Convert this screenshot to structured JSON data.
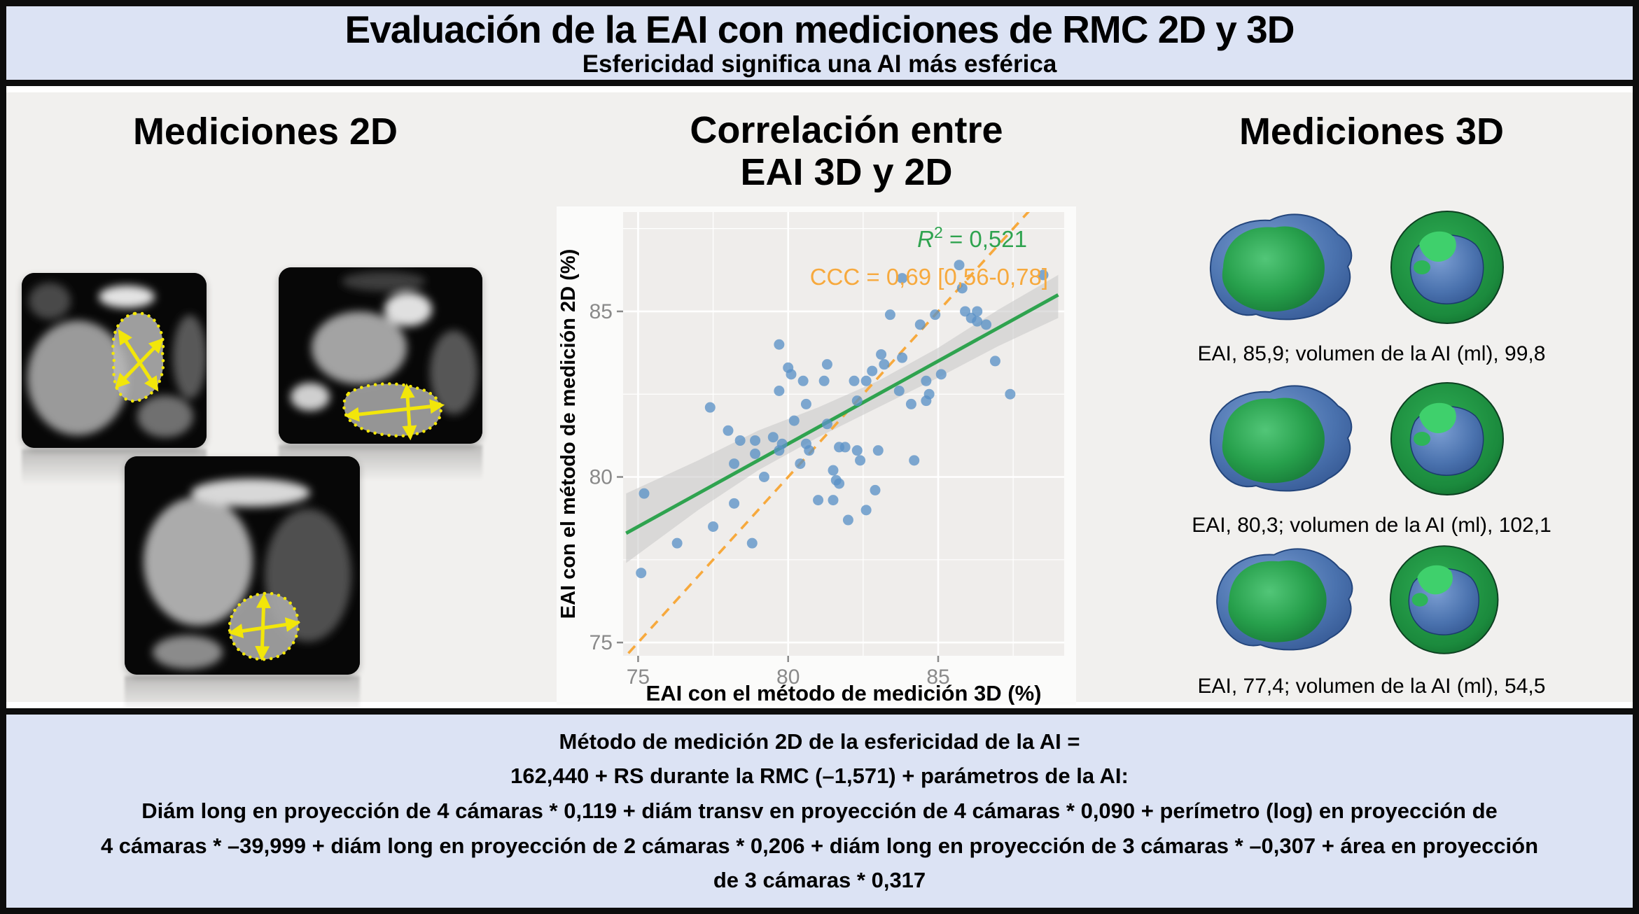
{
  "header": {
    "title": "Evaluación de la EAI con mediciones de RMC 2D y 3D",
    "subtitle": "Esfericidad significa una AI más esférica"
  },
  "panels": {
    "left": {
      "title": "Mediciones 2D"
    },
    "center": {
      "title_line1": "Correlación entre",
      "title_line2": "EAI 3D y 2D"
    },
    "right": {
      "title": "Mediciones 3D",
      "models": [
        {
          "caption": "EAI, 85,9; volumen de la AI (ml), 99,8"
        },
        {
          "caption": "EAI, 80,3; volumen de la AI (ml), 102,1"
        },
        {
          "caption": "EAI, 77,4; volumen de la AI (ml), 54,5"
        }
      ]
    }
  },
  "chart_data": {
    "type": "scatter",
    "title": "",
    "xlabel": "EAI con el método de medición 3D (%)",
    "ylabel": "EAI con el método de medición 2D (%)",
    "xlim": [
      74.5,
      89.2
    ],
    "ylim": [
      74.6,
      88.0
    ],
    "xticks": [
      75,
      80,
      85
    ],
    "yticks": [
      75,
      80,
      85
    ],
    "grid": true,
    "annotations": {
      "r2_base": "R",
      "r2_sup": "2",
      "r2_rest": " = 0,521",
      "ccc": "CCC = 0,69 [0,56-0,78]"
    },
    "points": [
      [
        75.2,
        79.5
      ],
      [
        75.1,
        77.1
      ],
      [
        76.3,
        78.0
      ],
      [
        77.4,
        82.1
      ],
      [
        77.5,
        78.5
      ],
      [
        78.0,
        81.4
      ],
      [
        78.2,
        79.2
      ],
      [
        78.2,
        80.4
      ],
      [
        78.4,
        81.1
      ],
      [
        78.8,
        78.0
      ],
      [
        78.9,
        81.1
      ],
      [
        78.9,
        80.7
      ],
      [
        79.2,
        80.0
      ],
      [
        79.5,
        81.2
      ],
      [
        79.7,
        84.0
      ],
      [
        79.7,
        82.6
      ],
      [
        79.7,
        80.8
      ],
      [
        79.8,
        81.0
      ],
      [
        80.0,
        83.3
      ],
      [
        80.1,
        83.1
      ],
      [
        80.2,
        81.7
      ],
      [
        80.4,
        80.4
      ],
      [
        80.5,
        82.9
      ],
      [
        80.6,
        82.2
      ],
      [
        80.6,
        81.0
      ],
      [
        80.7,
        80.8
      ],
      [
        81.0,
        79.3
      ],
      [
        81.2,
        82.9
      ],
      [
        81.3,
        81.6
      ],
      [
        81.3,
        83.4
      ],
      [
        81.5,
        80.2
      ],
      [
        81.5,
        79.3
      ],
      [
        81.6,
        79.9
      ],
      [
        81.7,
        79.8
      ],
      [
        81.7,
        80.9
      ],
      [
        81.9,
        80.9
      ],
      [
        82.0,
        78.7
      ],
      [
        82.2,
        82.9
      ],
      [
        82.3,
        82.3
      ],
      [
        82.3,
        80.8
      ],
      [
        82.4,
        80.5
      ],
      [
        82.6,
        82.9
      ],
      [
        82.6,
        79.0
      ],
      [
        82.8,
        83.2
      ],
      [
        82.9,
        79.6
      ],
      [
        83.0,
        80.8
      ],
      [
        83.1,
        83.7
      ],
      [
        83.2,
        83.4
      ],
      [
        83.4,
        84.9
      ],
      [
        83.8,
        86.0
      ],
      [
        83.8,
        83.6
      ],
      [
        83.7,
        82.6
      ],
      [
        84.1,
        82.2
      ],
      [
        84.2,
        80.5
      ],
      [
        84.4,
        84.6
      ],
      [
        84.6,
        82.9
      ],
      [
        84.6,
        82.3
      ],
      [
        84.7,
        82.5
      ],
      [
        84.9,
        84.9
      ],
      [
        85.1,
        83.1
      ],
      [
        85.7,
        86.4
      ],
      [
        85.8,
        85.7
      ],
      [
        85.9,
        85.0
      ],
      [
        86.1,
        84.8
      ],
      [
        86.3,
        85.0
      ],
      [
        86.3,
        84.7
      ],
      [
        86.6,
        84.6
      ],
      [
        86.9,
        83.5
      ],
      [
        87.4,
        82.5
      ],
      [
        88.5,
        86.1
      ]
    ],
    "regression_line": {
      "x": [
        74.6,
        89.0
      ],
      "y": [
        78.3,
        85.5
      ]
    },
    "identity_line": {
      "style": "dashed",
      "x": [
        74.3,
        88.6
      ],
      "y": [
        74.3,
        88.6
      ]
    },
    "ci_band": {
      "x": [
        74.6,
        77.0,
        79.0,
        81.0,
        83.0,
        85.0,
        87.0,
        89.0
      ],
      "upper": [
        79.5,
        80.5,
        81.4,
        82.1,
        82.9,
        83.9,
        85.05,
        86.1
      ],
      "lower": [
        77.4,
        79.0,
        80.2,
        81.2,
        82.1,
        83.0,
        83.95,
        84.8
      ]
    },
    "legend": null
  },
  "footer": {
    "lines": [
      "Método de medición 2D de la esfericidad de la AI =",
      "162,440 + RS durante la RMC (–1,571) + parámetros de la AI:",
      "Diám long en proyección de 4 cámaras * 0,119 + diám transv en proyección de 4 cámaras * 0,090 + perímetro (log) en proyección de",
      "4 cámaras * –39,999 + diám long  en proyección de 2 cámaras * 0,206 + diám long en proyección de 3 cámaras * –0,307 + área en proyección",
      "de 3 cámaras * 0,317"
    ]
  },
  "colors": {
    "band_blue": "#dce3f4",
    "body_gray": "#f1f0ee",
    "plot_bg": "#efedeb",
    "panel_bg": "#fbfbfa",
    "point_blue": "#5b92c6",
    "regression_green": "#2fa34f",
    "ccc_orange": "#f7a93d",
    "ci_gray": "#c9c9c9",
    "tick_gray": "#8a8a8a",
    "annotation_yellow": "#f2e60a",
    "model_green": "#27a04c",
    "model_blue": "#4a72ae"
  }
}
